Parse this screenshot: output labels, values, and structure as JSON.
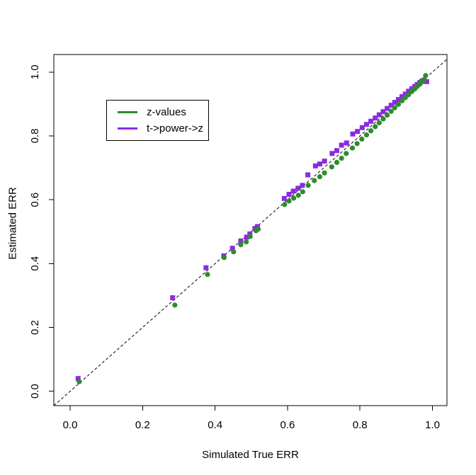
{
  "figure": {
    "background": "#ffffff",
    "frame_color": "#000000"
  },
  "legend": {
    "items": [
      {
        "label": "z-values",
        "color": "#2e8b2e"
      },
      {
        "label": "t->power->z",
        "color": "#8a2be2"
      }
    ]
  },
  "chart_data": {
    "type": "scatter",
    "title": "",
    "xlabel": "Simulated True ERR",
    "ylabel": "Estimated ERR",
    "xlim": [
      -0.045,
      1.04
    ],
    "ylim": [
      -0.045,
      1.055
    ],
    "grid": false,
    "legend_position": "top-left-inside",
    "x_tick_values": [
      0.0,
      0.2,
      0.4,
      0.6,
      0.8,
      1.0
    ],
    "y_tick_values": [
      0.0,
      0.2,
      0.4,
      0.6,
      0.8,
      1.0
    ],
    "x_tick_labels": [
      "0.0",
      "0.2",
      "0.4",
      "0.6",
      "0.8",
      "1.0"
    ],
    "y_tick_labels": [
      "0.0",
      "0.2",
      "0.4",
      "0.6",
      "0.8",
      "1.0"
    ],
    "reference_line": {
      "type": "identity",
      "slope": 1,
      "intercept": 0,
      "style": "dashed",
      "color": "#000000"
    },
    "series": [
      {
        "name": "t->power->z",
        "marker": "square",
        "color": "#8a2be2",
        "x": [
          0.022,
          0.283,
          0.375,
          0.424,
          0.448,
          0.471,
          0.487,
          0.496,
          0.51,
          0.517,
          0.591,
          0.604,
          0.616,
          0.629,
          0.641,
          0.656,
          0.677,
          0.689,
          0.702,
          0.723,
          0.736,
          0.749,
          0.763,
          0.78,
          0.793,
          0.806,
          0.818,
          0.83,
          0.842,
          0.853,
          0.864,
          0.875,
          0.886,
          0.896,
          0.906,
          0.916,
          0.925,
          0.934,
          0.943,
          0.951,
          0.958,
          0.965,
          0.971,
          0.977,
          0.984
        ],
        "y": [
          0.04,
          0.293,
          0.387,
          0.424,
          0.448,
          0.471,
          0.483,
          0.493,
          0.51,
          0.516,
          0.604,
          0.617,
          0.627,
          0.636,
          0.645,
          0.678,
          0.706,
          0.712,
          0.721,
          0.745,
          0.754,
          0.771,
          0.778,
          0.806,
          0.814,
          0.826,
          0.836,
          0.846,
          0.856,
          0.866,
          0.876,
          0.886,
          0.896,
          0.905,
          0.914,
          0.923,
          0.931,
          0.94,
          0.948,
          0.955,
          0.961,
          0.967,
          0.972,
          0.975,
          0.97
        ]
      },
      {
        "name": "z-values",
        "marker": "circle",
        "color": "#2e8b2e",
        "x": [
          0.025,
          0.289,
          0.379,
          0.425,
          0.451,
          0.471,
          0.486,
          0.497,
          0.513,
          0.519,
          0.592,
          0.604,
          0.617,
          0.63,
          0.642,
          0.657,
          0.674,
          0.689,
          0.702,
          0.722,
          0.736,
          0.749,
          0.762,
          0.779,
          0.792,
          0.805,
          0.818,
          0.83,
          0.842,
          0.853,
          0.864,
          0.875,
          0.886,
          0.896,
          0.906,
          0.916,
          0.925,
          0.934,
          0.943,
          0.951,
          0.958,
          0.965,
          0.971,
          0.977,
          0.981
        ],
        "y": [
          0.03,
          0.27,
          0.366,
          0.419,
          0.437,
          0.459,
          0.468,
          0.485,
          0.503,
          0.508,
          0.585,
          0.596,
          0.605,
          0.614,
          0.625,
          0.645,
          0.66,
          0.672,
          0.684,
          0.703,
          0.717,
          0.73,
          0.745,
          0.762,
          0.776,
          0.79,
          0.803,
          0.816,
          0.829,
          0.841,
          0.853,
          0.865,
          0.877,
          0.888,
          0.899,
          0.91,
          0.92,
          0.929,
          0.939,
          0.947,
          0.955,
          0.962,
          0.969,
          0.976,
          0.989
        ]
      }
    ]
  }
}
